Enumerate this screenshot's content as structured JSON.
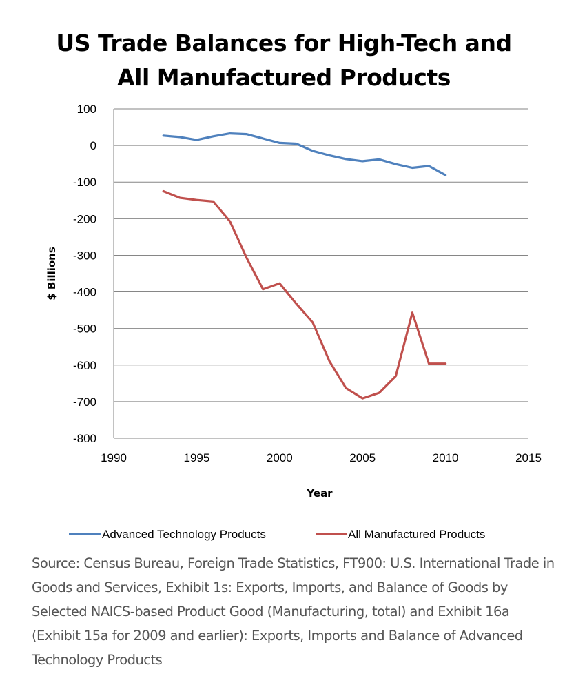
{
  "chart_data": {
    "type": "line",
    "title_lines": [
      "US Trade Balances for High-Tech and",
      "All Manufactured Products"
    ],
    "xlabel": "Year",
    "ylabel": "$ Billions",
    "xlim": [
      1990,
      2015
    ],
    "ylim": [
      -800,
      100
    ],
    "x_ticks": [
      1990,
      1995,
      2000,
      2005,
      2010,
      2015
    ],
    "y_ticks": [
      100,
      0,
      -100,
      -200,
      -300,
      -400,
      -500,
      -600,
      -700,
      -800
    ],
    "grid": "horizontal",
    "legend_position": "bottom",
    "x": [
      1993,
      1994,
      1995,
      1996,
      1997,
      1998,
      1999,
      2000,
      2001,
      2002,
      2003,
      2004,
      2005,
      2006,
      2007,
      2008,
      2009,
      2010
    ],
    "series": [
      {
        "name": "Advanced Technology Products",
        "color": "#4f81bd",
        "values": [
          27,
          23,
          15,
          25,
          33,
          31,
          19,
          7,
          5,
          -15,
          -27,
          -37,
          -43,
          -38,
          -51,
          -61,
          -56,
          -81
        ]
      },
      {
        "name": "All Manufactured Products",
        "color": "#c0504d",
        "values": [
          -125,
          -143,
          -149,
          -153,
          -207,
          -306,
          -393,
          -377,
          -432,
          -484,
          -589,
          -663,
          -691,
          -676,
          -630,
          -457,
          -596,
          -596
        ]
      }
    ]
  },
  "source_text": "Source: Census Bureau,  Foreign Trade Statistics, FT900: U.S. International Trade in Goods and Services, Exhibit 1s: Exports, Imports, and Balance of Goods by Selected NAICS-based Product Good (Manufacturing, total) and  Exhibit 16a (Exhibit 15a for 2009 and earlier): Exports, Imports and Balance of Advanced Technology Products"
}
